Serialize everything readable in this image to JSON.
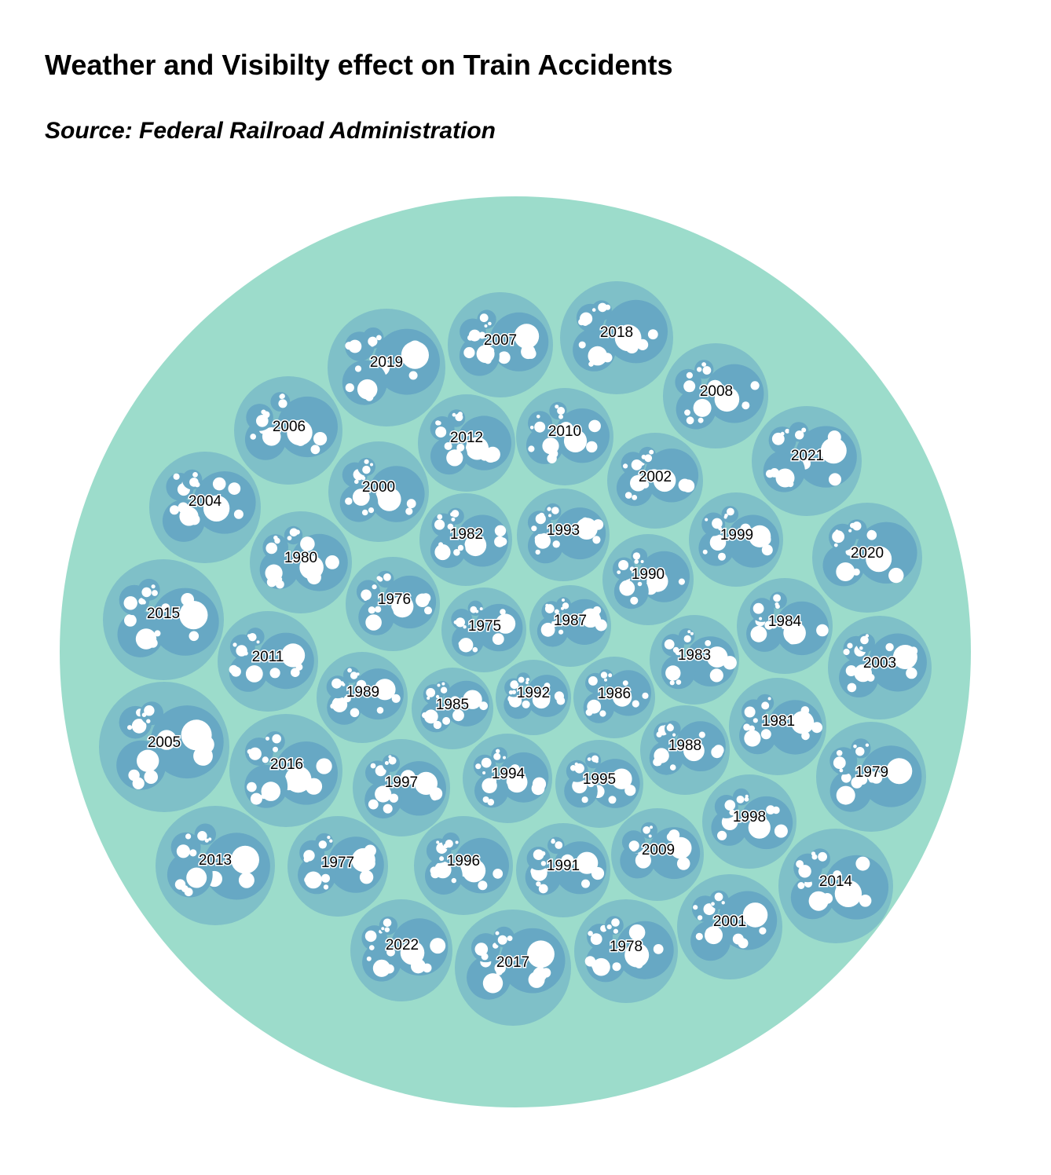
{
  "title": "Weather and Visibilty effect on Train Accidents",
  "subtitle": "Source: Federal Railroad Administration",
  "colors": {
    "root": "#9cdccb",
    "year": "#7fc0c8",
    "condition": "#67a8c4",
    "leaf": "#ffffff"
  },
  "chart_data": {
    "type": "circle-packing",
    "title": "Weather and Visibilty effect on Train Accidents",
    "subtitle": "Source: Federal Railroad Administration",
    "groups": [
      "1975",
      "1976",
      "1977",
      "1978",
      "1979",
      "1980",
      "1981",
      "1982",
      "1983",
      "1984",
      "1985",
      "1986",
      "1987",
      "1988",
      "1989",
      "1990",
      "1991",
      "1992",
      "1993",
      "1994",
      "1995",
      "1996",
      "1997",
      "1998",
      "1999",
      "2000",
      "2001",
      "2002",
      "2003",
      "2004",
      "2005",
      "2006",
      "2007",
      "2008",
      "2009",
      "2010",
      "2011",
      "2012",
      "2013",
      "2014",
      "2015",
      "2016",
      "2017",
      "2018",
      "2019",
      "2020",
      "2021",
      "2022"
    ]
  }
}
